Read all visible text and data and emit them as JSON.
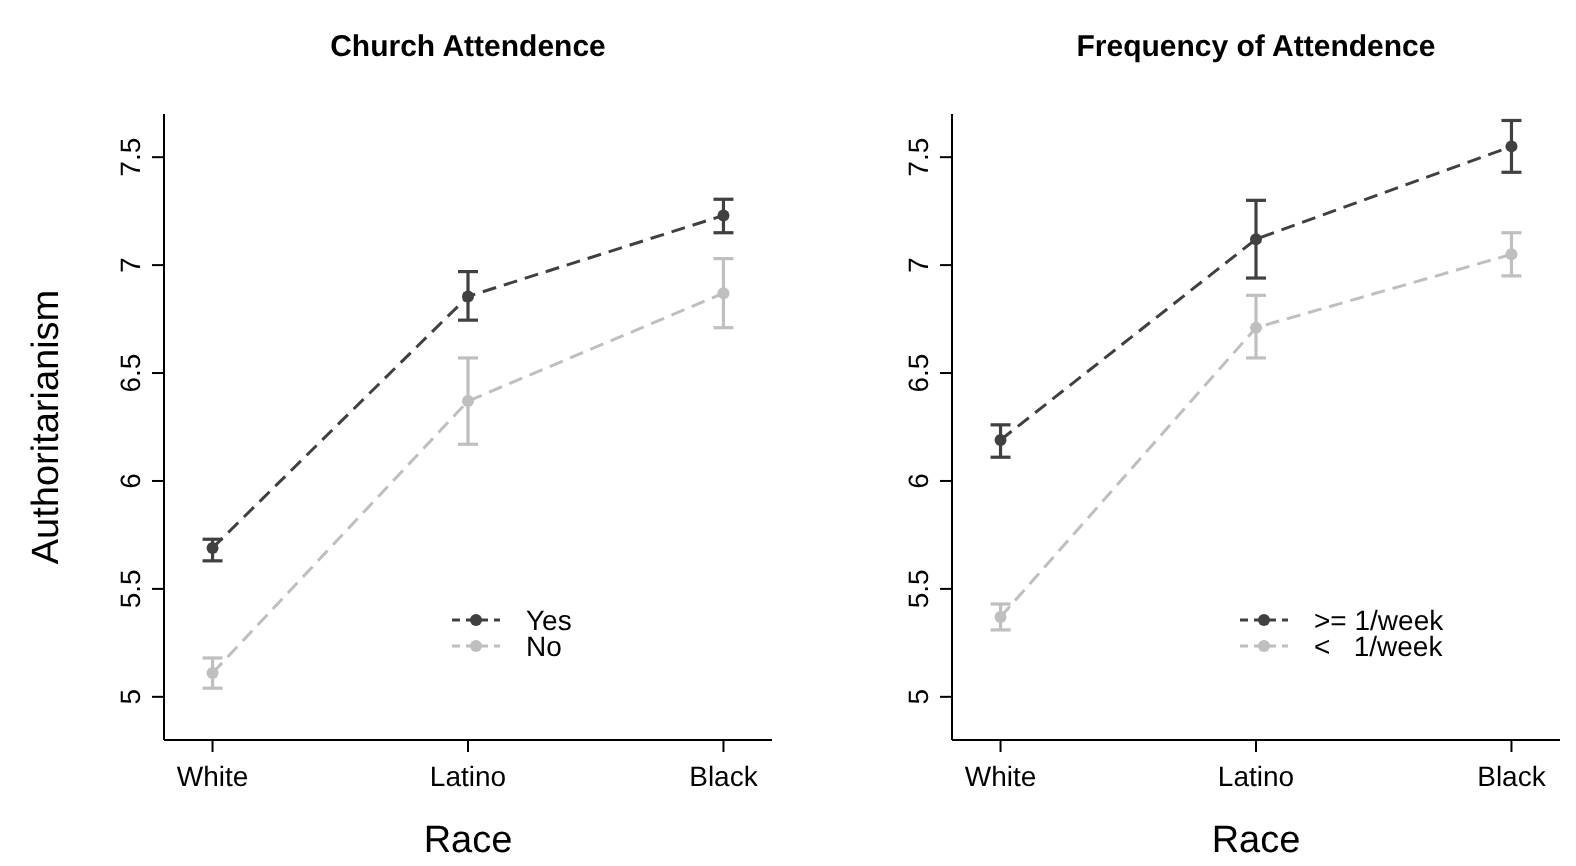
{
  "chart_data": [
    {
      "type": "line",
      "title": "Church Attendence",
      "xlabel": "Race",
      "ylabel": "Authoritarianism",
      "categories": [
        "White",
        "Latino",
        "Black"
      ],
      "ylim": [
        4.8,
        7.7
      ],
      "yticks": [
        5,
        5.5,
        6,
        6.5,
        7,
        7.5
      ],
      "legend": "bottom right",
      "marker": "circle",
      "line_style": "dashed",
      "grid": false,
      "series": [
        {
          "name": "Yes",
          "color": "#404040",
          "values": [
            5.69,
            6.855,
            7.23
          ],
          "errors": [
            [
              5.63,
              5.73
            ],
            [
              6.745,
              6.97
            ],
            [
              7.15,
              7.305
            ]
          ]
        },
        {
          "name": "No",
          "color": "#bfbfbf",
          "values": [
            5.11,
            6.37,
            6.87
          ],
          "errors": [
            [
              5.04,
              5.18
            ],
            [
              6.17,
              6.57
            ],
            [
              6.71,
              7.03
            ]
          ]
        }
      ]
    },
    {
      "type": "line",
      "title": "Frequency of Attendence",
      "xlabel": "Race",
      "categories": [
        "White",
        "Latino",
        "Black"
      ],
      "ylim": [
        4.8,
        7.7
      ],
      "yticks": [
        5,
        5.5,
        6,
        6.5,
        7,
        7.5
      ],
      "legend": "bottom right",
      "marker": "circle",
      "line_style": "dashed",
      "grid": false,
      "series": [
        {
          "name": ">= 1/week",
          "color": "#404040",
          "values": [
            6.19,
            7.12,
            7.55
          ],
          "errors": [
            [
              6.11,
              6.26
            ],
            [
              6.94,
              7.3
            ],
            [
              7.43,
              7.67
            ]
          ]
        },
        {
          "name": "<   1/week",
          "color": "#bfbfbf",
          "values": [
            5.37,
            6.71,
            7.05
          ],
          "errors": [
            [
              5.31,
              5.43
            ],
            [
              6.57,
              6.86
            ],
            [
              6.95,
              7.15
            ]
          ]
        }
      ]
    }
  ]
}
